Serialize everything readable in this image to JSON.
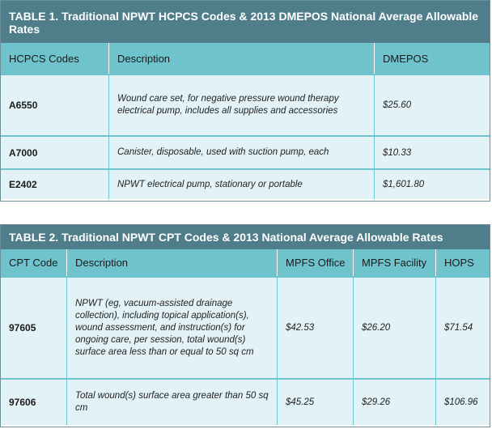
{
  "table1": {
    "title": "TABLE 1. Traditional NPWT HCPCS Codes & 2013 DMEPOS National Average Allowable Rates",
    "headers": [
      "HCPCS Codes",
      "Description",
      "DMEPOS"
    ],
    "rows": [
      {
        "code": "A6550",
        "description": "Wound care set, for negative pressure wound therapy electrical pump, includes all supplies and accessories",
        "dmepos": "$25.60"
      },
      {
        "code": "A7000",
        "description": "Canister, disposable, used with suction pump, each",
        "dmepos": "$10.33"
      },
      {
        "code": "E2402",
        "description": "NPWT electrical pump, stationary or portable",
        "dmepos": "$1,601.80"
      }
    ]
  },
  "table2": {
    "title": "TABLE 2. Traditional NPWT CPT Codes & 2013 National Average Allowable Rates",
    "headers": [
      "CPT Code",
      "Description",
      "MPFS Office",
      "MPFS Facility",
      "HOPS"
    ],
    "rows": [
      {
        "code": "97605",
        "description": "NPWT (eg, vacuum-assisted drainage collection), including topical application(s), wound assessment, and instruction(s) for ongoing care, per session, total wound(s) surface area less than or equal to 50 sq cm",
        "office": "$42.53",
        "facility": "$26.20",
        "hops": "$71.54"
      },
      {
        "code": "97606",
        "description": "Total wound(s) surface area greater than 50 sq cm",
        "office": "$45.25",
        "facility": "$29.26",
        "hops": "$106.96"
      }
    ]
  }
}
